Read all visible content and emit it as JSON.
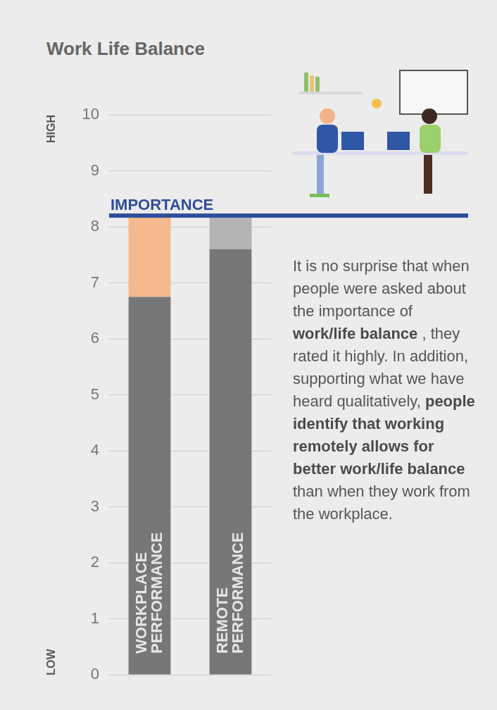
{
  "chart_data": {
    "type": "bar",
    "title": "Work Life Balance",
    "categories": [
      "WORKPLACE PERFORMANCE",
      "REMOTE PERFORMANCE"
    ],
    "series": [
      {
        "color": "#777777",
        "values": [
          6.75,
          7.6
        ]
      },
      {
        "colors": [
          "#f4b98c",
          "#b3b3b3"
        ],
        "values": [
          1.45,
          0.6
        ]
      }
    ],
    "stacked": true,
    "ylim": [
      0,
      10
    ],
    "yticks": [
      0,
      1,
      2,
      3,
      4,
      5,
      6,
      7,
      8,
      9,
      10
    ],
    "grid": true,
    "y_axis_labels": {
      "high": "HIGH",
      "low": "LOW"
    },
    "reference_line": {
      "label": "IMPORTANCE",
      "value": 8.2,
      "color": "#2e4d9b"
    },
    "annotation": [
      "It is no surprise that when people were asked about the importance of",
      "work/life balance",
      ", they rated it highly. In addition, supporting what we have heard qualitatively,",
      "people identify that working remotely allows for better work/life balance",
      "than when they work from the workplace."
    ]
  }
}
